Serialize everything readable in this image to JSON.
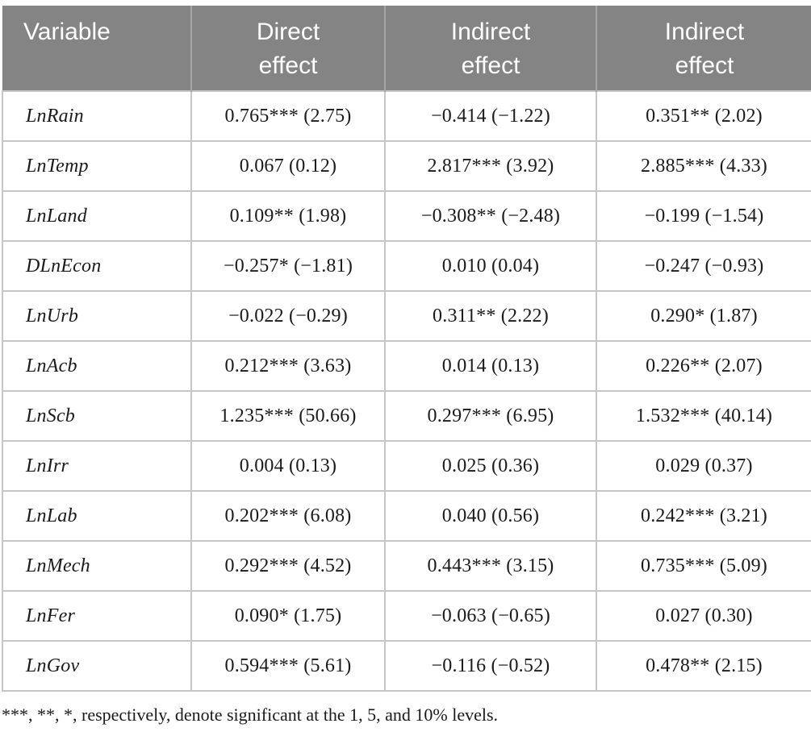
{
  "table": {
    "type": "table",
    "columns": [
      {
        "label": "Variable"
      },
      {
        "label": "Direct\neffect"
      },
      {
        "label": "Indirect\neffect"
      },
      {
        "label": "Indirect\neffect"
      }
    ],
    "rows": [
      {
        "variable": "LnRain",
        "direct": "0.765*** (2.75)",
        "indirect1": "−0.414 (−1.22)",
        "indirect2": "0.351** (2.02)"
      },
      {
        "variable": "LnTemp",
        "direct": "0.067 (0.12)",
        "indirect1": "2.817*** (3.92)",
        "indirect2": "2.885*** (4.33)"
      },
      {
        "variable": "LnLand",
        "direct": "0.109** (1.98)",
        "indirect1": "−0.308** (−2.48)",
        "indirect2": "−0.199 (−1.54)"
      },
      {
        "variable": "DLnEcon",
        "direct": "−0.257* (−1.81)",
        "indirect1": "0.010 (0.04)",
        "indirect2": "−0.247 (−0.93)"
      },
      {
        "variable": "LnUrb",
        "direct": "−0.022 (−0.29)",
        "indirect1": "0.311** (2.22)",
        "indirect2": "0.290* (1.87)"
      },
      {
        "variable": "LnAcb",
        "direct": "0.212*** (3.63)",
        "indirect1": "0.014 (0.13)",
        "indirect2": "0.226** (2.07)"
      },
      {
        "variable": "LnScb",
        "direct": "1.235*** (50.66)",
        "indirect1": "0.297*** (6.95)",
        "indirect2": "1.532*** (40.14)"
      },
      {
        "variable": "LnIrr",
        "direct": "0.004 (0.13)",
        "indirect1": "0.025 (0.36)",
        "indirect2": "0.029 (0.37)"
      },
      {
        "variable": "LnLab",
        "direct": "0.202*** (6.08)",
        "indirect1": "0.040 (0.56)",
        "indirect2": "0.242*** (3.21)"
      },
      {
        "variable": "LnMech",
        "direct": "0.292*** (4.52)",
        "indirect1": "0.443*** (3.15)",
        "indirect2": "0.735*** (5.09)"
      },
      {
        "variable": "LnFer",
        "direct": "0.090* (1.75)",
        "indirect1": "−0.063 (−0.65)",
        "indirect2": "0.027 (0.30)"
      },
      {
        "variable": "LnGov",
        "direct": "0.594*** (5.61)",
        "indirect1": "−0.116 (−0.52)",
        "indirect2": "0.478** (2.15)"
      }
    ]
  },
  "footnote": "***, **, *, respectively, denote significant at the 1, 5, and 10% levels.",
  "colors": {
    "header_bg": "#848484",
    "header_text": "#ffffff",
    "header_divider": "#a6a6a6",
    "grid_line": "#c6c6c6",
    "body_text": "#1a1a1a"
  }
}
